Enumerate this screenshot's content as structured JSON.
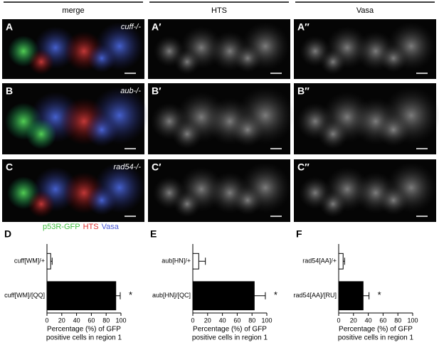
{
  "columns": [
    "merge",
    "HTS",
    "Vasa"
  ],
  "image_rows": [
    {
      "labels": [
        "A",
        "A′",
        "A″"
      ],
      "genotype": "cuff-/-"
    },
    {
      "labels": [
        "B",
        "B′",
        "B″"
      ],
      "genotype": "aub-/-"
    },
    {
      "labels": [
        "C",
        "C′",
        "C″"
      ],
      "genotype": "rad54-/-"
    }
  ],
  "channel_legend": [
    {
      "text": "p53R-GFP",
      "color": "#3fbf3f"
    },
    {
      "text": "HTS",
      "color": "#e03030"
    },
    {
      "text": "Vasa",
      "color": "#4a5ad8"
    }
  ],
  "chart_data": [
    {
      "type": "bar",
      "orientation": "horizontal",
      "panel_label": "D",
      "categories": [
        "cuff[WM]/+",
        "cuff[WM]/[QQ]"
      ],
      "values": [
        5,
        93
      ],
      "errors": [
        2,
        6
      ],
      "colors": [
        "#ffffff",
        "#000000"
      ],
      "significance": [
        null,
        "*"
      ],
      "xlim": [
        0,
        100
      ],
      "xticks": [
        0,
        20,
        40,
        60,
        80,
        100
      ],
      "xlabel": [
        "Percentage (%) of GFP",
        "positive cells in region 1"
      ]
    },
    {
      "type": "bar",
      "orientation": "horizontal",
      "panel_label": "E",
      "categories": [
        "aub[HN]/+",
        "aub[HN]/[QC]"
      ],
      "values": [
        8,
        83
      ],
      "errors": [
        9,
        15
      ],
      "colors": [
        "#ffffff",
        "#000000"
      ],
      "significance": [
        null,
        "*"
      ],
      "xlim": [
        0,
        100
      ],
      "xticks": [
        0,
        20,
        40,
        60,
        80,
        100
      ],
      "xlabel": [
        "Percentage (%) of GFP",
        "positive cells in region 1"
      ]
    },
    {
      "type": "bar",
      "orientation": "horizontal",
      "panel_label": "F",
      "categories": [
        "rad54[AA]/+",
        "rad54[AA]/[RU]"
      ],
      "values": [
        6,
        33
      ],
      "errors": [
        2,
        8
      ],
      "colors": [
        "#ffffff",
        "#000000"
      ],
      "significance": [
        null,
        "*"
      ],
      "xlim": [
        0,
        100
      ],
      "xticks": [
        0,
        20,
        40,
        60,
        80,
        100
      ],
      "xlabel": [
        "Percentage (%) of GFP",
        "positive cells in region 1"
      ]
    }
  ]
}
